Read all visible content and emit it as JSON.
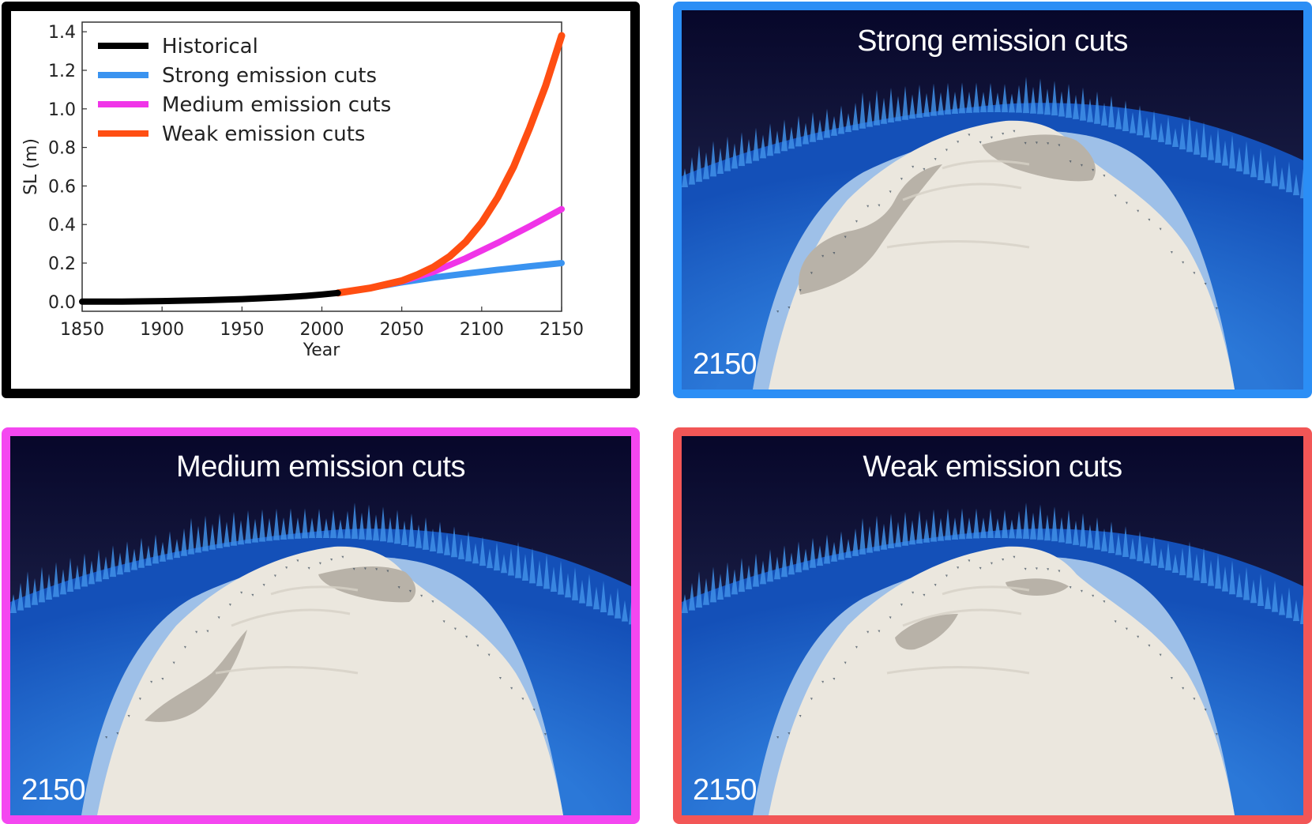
{
  "colors": {
    "historical": "#000000",
    "strong": "#3a93f0",
    "medium": "#f034e8",
    "weak": "#ff4e12",
    "strong_border": "#2b8ef5",
    "medium_border": "#f447f0",
    "weak_border": "#f25656"
  },
  "chart_data": {
    "type": "line",
    "xlabel": "Year",
    "ylabel": "SL (m)",
    "xlim": [
      1850,
      2150
    ],
    "ylim": [
      -0.05,
      1.45
    ],
    "xticks": [
      1850,
      1900,
      1950,
      2000,
      2050,
      2100,
      2150
    ],
    "yticks": [
      0.0,
      0.2,
      0.4,
      0.6,
      0.8,
      1.0,
      1.2,
      1.4
    ],
    "ytick_labels": [
      "0.0",
      "0.2",
      "0.4",
      "0.6",
      "0.8",
      "1.0",
      "1.2",
      "1.4"
    ],
    "legend_position": "top-left",
    "grid": false,
    "series": [
      {
        "name": "Historical",
        "color_key": "historical",
        "x": [
          1850,
          1875,
          1900,
          1925,
          1950,
          1975,
          1990,
          2000,
          2010
        ],
        "y": [
          0.0,
          0.0,
          0.003,
          0.007,
          0.013,
          0.022,
          0.03,
          0.037,
          0.045
        ]
      },
      {
        "name": "Strong emission cuts",
        "color_key": "strong",
        "x": [
          2010,
          2030,
          2050,
          2070,
          2090,
          2110,
          2130,
          2150
        ],
        "y": [
          0.045,
          0.07,
          0.1,
          0.125,
          0.145,
          0.165,
          0.183,
          0.2
        ]
      },
      {
        "name": "Medium emission cuts",
        "color_key": "medium",
        "x": [
          2010,
          2030,
          2050,
          2070,
          2090,
          2110,
          2130,
          2150
        ],
        "y": [
          0.045,
          0.07,
          0.105,
          0.155,
          0.225,
          0.305,
          0.39,
          0.48
        ]
      },
      {
        "name": "Weak emission cuts",
        "color_key": "weak",
        "x": [
          2010,
          2030,
          2050,
          2060,
          2070,
          2080,
          2090,
          2100,
          2110,
          2120,
          2130,
          2140,
          2150
        ],
        "y": [
          0.045,
          0.07,
          0.108,
          0.14,
          0.18,
          0.235,
          0.31,
          0.41,
          0.54,
          0.7,
          0.9,
          1.12,
          1.38
        ]
      }
    ]
  },
  "panels": [
    {
      "id": "strong",
      "title": "Strong emission cuts",
      "year": "2150"
    },
    {
      "id": "medium",
      "title": "Medium emission cuts",
      "year": "2150"
    },
    {
      "id": "weak",
      "title": "Weak emission cuts",
      "year": "2150"
    }
  ]
}
